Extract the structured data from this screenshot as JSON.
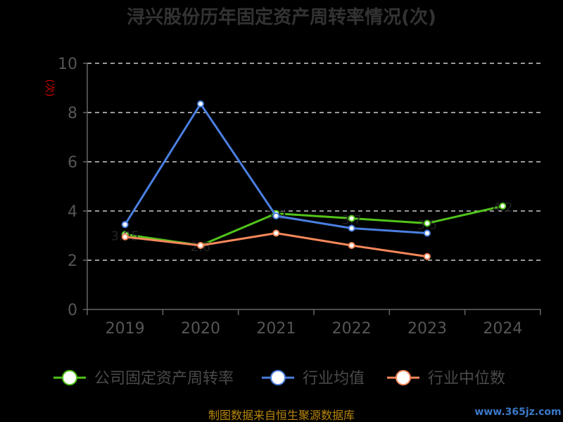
{
  "chart_data": {
    "type": "line",
    "title": "浔兴股份历年固定资产周转率情况(次)",
    "ylabel": "(次)",
    "categories": [
      "2019",
      "2020",
      "2021",
      "2022",
      "2023",
      "2024"
    ],
    "yticks": [
      "0",
      "2",
      "4",
      "6",
      "8",
      "10"
    ],
    "ylim": [
      0,
      10
    ],
    "grid": true,
    "legend_position": "bottom",
    "series": [
      {
        "name": "公司固定资产周转率",
        "color": "#52c41a",
        "values": [
          3.05,
          2.6,
          3.9,
          3.7,
          3.5,
          4.2
        ],
        "labels": [
          "3.05",
          "2.6",
          "3.9",
          "3.7",
          "3.5",
          "4.2"
        ]
      },
      {
        "name": "行业均值",
        "color": "#4a7fe0",
        "values": [
          3.45,
          8.35,
          3.8,
          3.3,
          3.1,
          null
        ]
      },
      {
        "name": "行业中位数",
        "color": "#f5875a",
        "values": [
          2.95,
          2.6,
          3.1,
          2.6,
          2.15,
          null
        ]
      }
    ]
  },
  "footer": {
    "source": "制图数据来自恒生聚源数据库",
    "watermark": "www.365jz.com"
  }
}
